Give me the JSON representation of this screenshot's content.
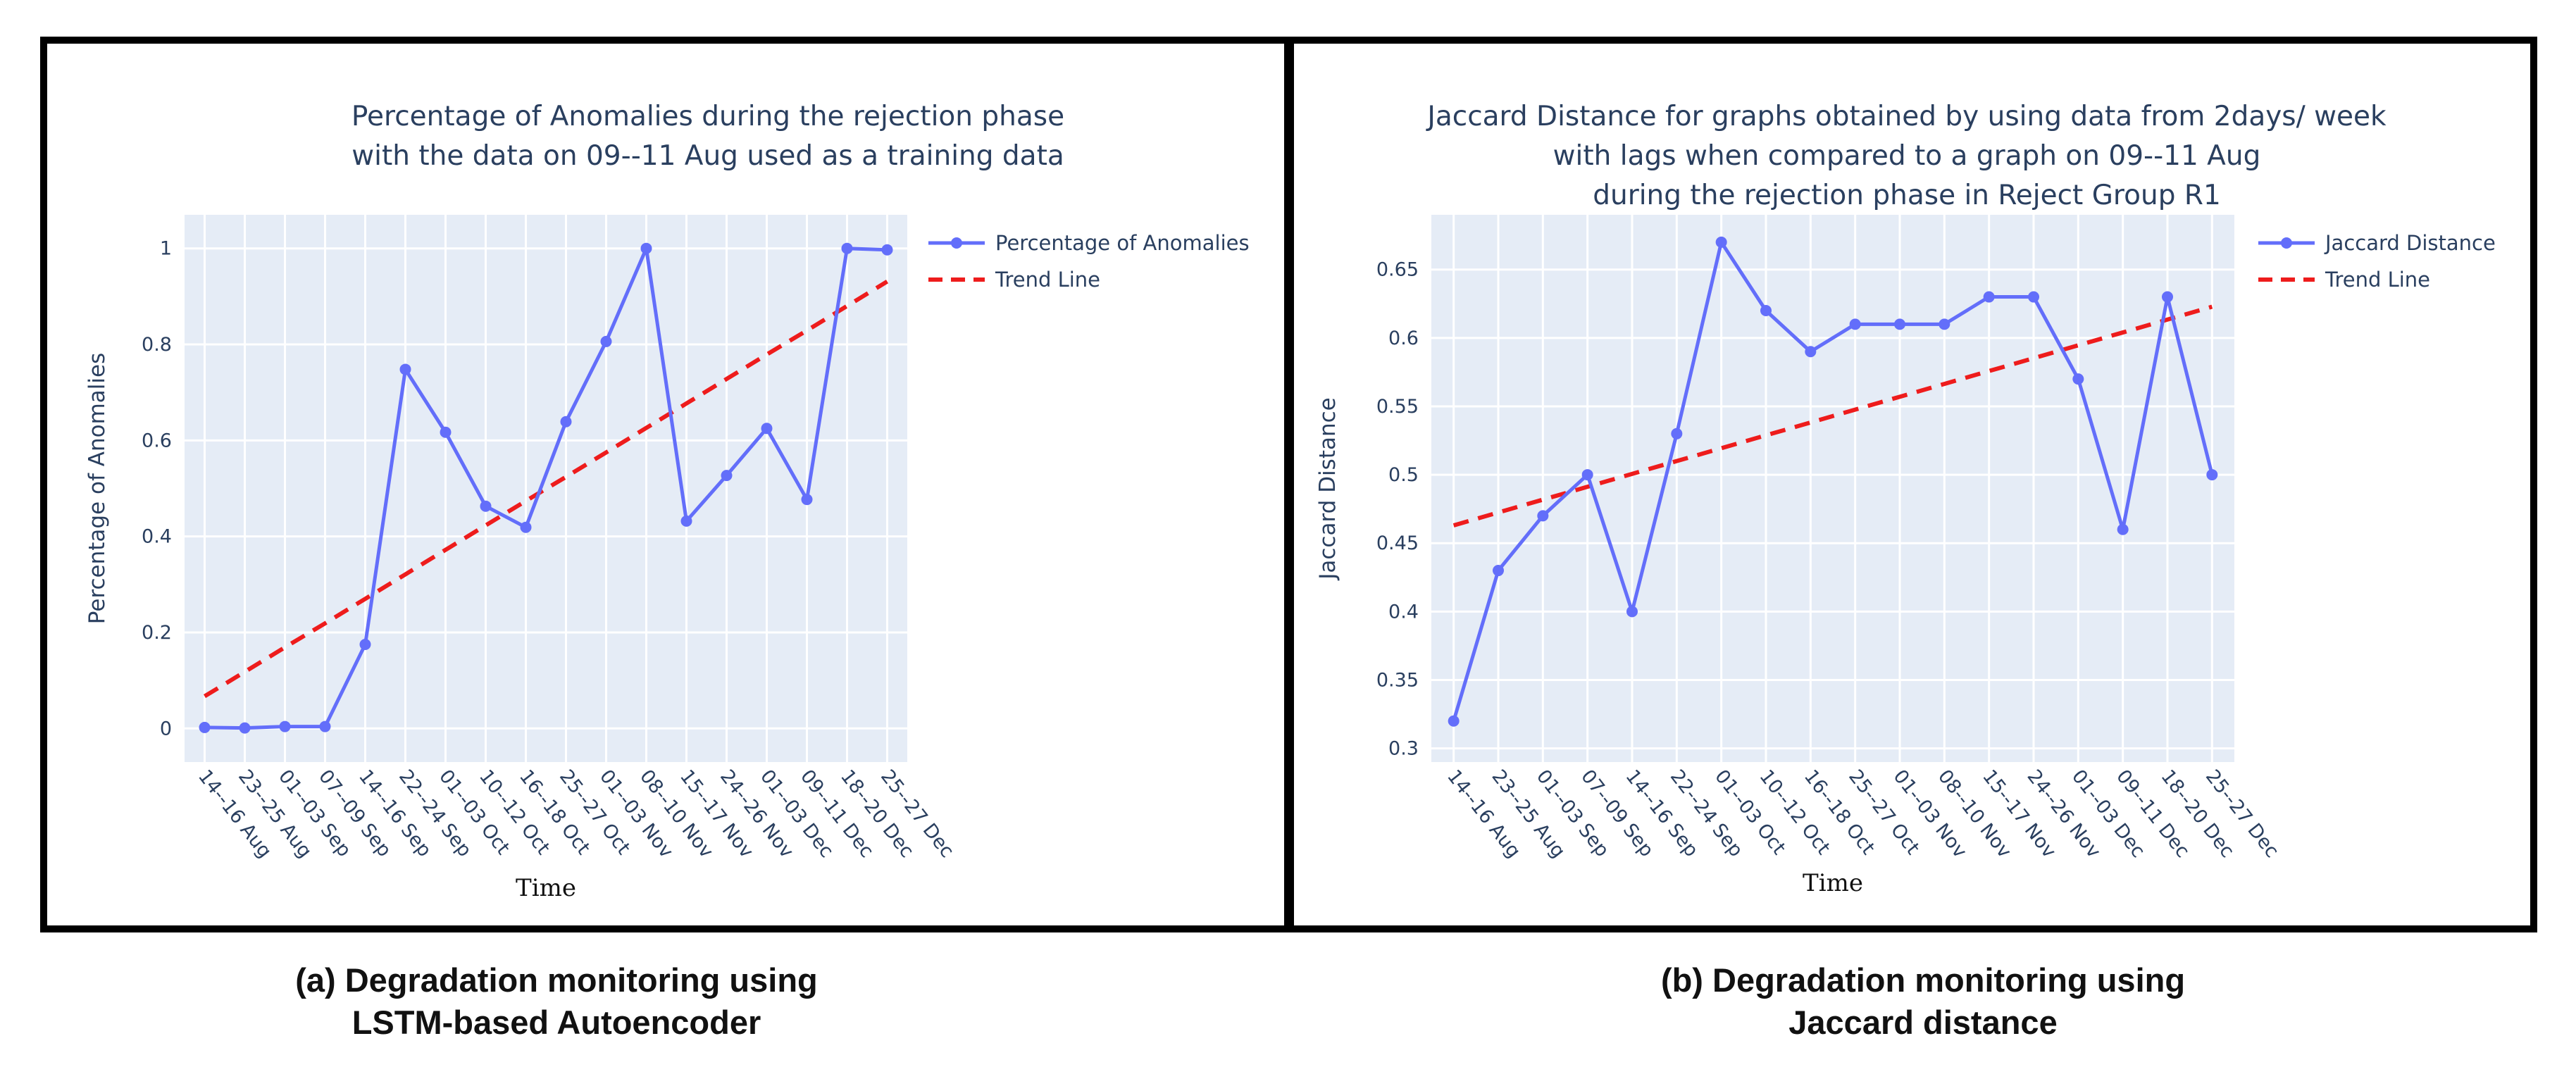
{
  "colors": {
    "series": "#636efa",
    "trend": "#ee1c1c",
    "plot_bg": "#e5ecf6",
    "text": "#2a3f5f"
  },
  "chart_data": [
    {
      "type": "line",
      "title_lines": [
        "Percentage of Anomalies during the rejection phase",
        "with the data on 09--11 Aug used as a training data"
      ],
      "xlabel": "Time",
      "ylabel": "Percentage of Anomalies",
      "ylim": [
        -0.07,
        1.07
      ],
      "yticks": [
        0,
        0.2,
        0.4,
        0.6,
        0.8,
        1
      ],
      "ytick_labels": [
        "0",
        "0.2",
        "0.4",
        "0.6",
        "0.8",
        "1"
      ],
      "categories": [
        "14--16 Aug",
        "23--25 Aug",
        "01--03 Sep",
        "07--09 Sep",
        "14--16 Sep",
        "22--24 Sep",
        "01--03 Oct",
        "10--12 Oct",
        "16--18 Oct",
        "25--27 Oct",
        "01--03 Nov",
        "08--10 Nov",
        "15--17 Nov",
        "24--26 Nov",
        "01--03 Dec",
        "09--11 Dec",
        "18--20 Dec",
        "25--27 Dec"
      ],
      "series": [
        {
          "name": "Percentage of Anomalies",
          "style": "lines+markers",
          "values": [
            0.002,
            0.001,
            0.004,
            0.004,
            0.175,
            0.748,
            0.617,
            0.463,
            0.419,
            0.639,
            0.806,
            1.0,
            0.432,
            0.527,
            0.625,
            0.477,
            1.0,
            0.997
          ]
        },
        {
          "name": "Trend Line",
          "style": "dash",
          "values": [
            0.067,
            0.118,
            0.169,
            0.219,
            0.27,
            0.321,
            0.372,
            0.423,
            0.474,
            0.524,
            0.575,
            0.626,
            0.677,
            0.728,
            0.779,
            0.829,
            0.88,
            0.931
          ]
        }
      ]
    },
    {
      "type": "line",
      "title_lines": [
        "Jaccard Distance for graphs obtained by using data from 2days/ week",
        "with lags when compared to a graph on 09--11 Aug",
        "during the rejection phase in Reject Group R1"
      ],
      "xlabel": "Time",
      "ylabel": "Jaccard Distance",
      "ylim": [
        0.29,
        0.69
      ],
      "yticks": [
        0.3,
        0.35,
        0.4,
        0.45,
        0.5,
        0.55,
        0.6,
        0.65
      ],
      "ytick_labels": [
        "0.3",
        "0.35",
        "0.4",
        "0.45",
        "0.5",
        "0.55",
        "0.6",
        "0.65"
      ],
      "categories": [
        "14--16 Aug",
        "23--25 Aug",
        "01--03 Sep",
        "07--09 Sep",
        "14--16 Sep",
        "22--24 Sep",
        "01--03 Oct",
        "10--12 Oct",
        "16--18 Oct",
        "25--27 Oct",
        "01--03 Nov",
        "08--10 Nov",
        "15--17 Nov",
        "24--26 Nov",
        "01--03 Dec",
        "09--11 Dec",
        "18--20 Dec",
        "25--27 Dec"
      ],
      "series": [
        {
          "name": "Jaccard Distance",
          "style": "lines+markers",
          "values": [
            0.32,
            0.43,
            0.47,
            0.5,
            0.4,
            0.53,
            0.67,
            0.62,
            0.59,
            0.61,
            0.61,
            0.61,
            0.63,
            0.63,
            0.57,
            0.46,
            0.63,
            0.5
          ]
        },
        {
          "name": "Trend Line",
          "style": "dash",
          "values": [
            0.463,
            0.4724,
            0.4818,
            0.4912,
            0.5006,
            0.51,
            0.5194,
            0.5288,
            0.5382,
            0.5476,
            0.557,
            0.5664,
            0.5758,
            0.5852,
            0.5946,
            0.604,
            0.6134,
            0.6228
          ]
        }
      ]
    }
  ],
  "captions": [
    {
      "line1": "(a) Degradation monitoring using",
      "line2": "LSTM-based Autoencoder"
    },
    {
      "line1": "(b) Degradation monitoring using",
      "line2": "Jaccard distance"
    }
  ]
}
